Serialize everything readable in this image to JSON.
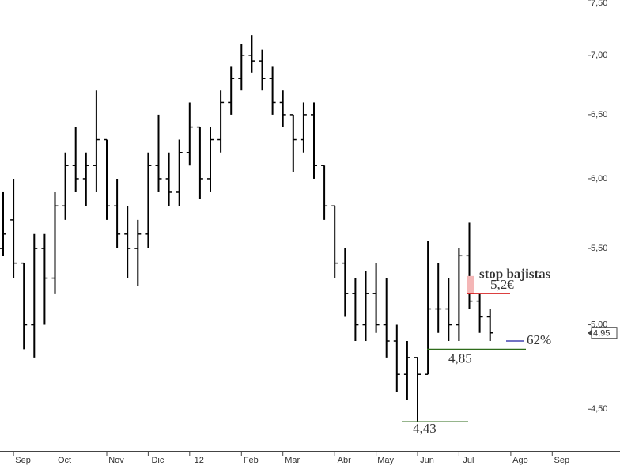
{
  "chart_data": {
    "type": "ohlc",
    "categories": [
      null,
      "Sep",
      null,
      null,
      null,
      "Oct",
      null,
      null,
      null,
      null,
      "Nov",
      null,
      null,
      null,
      "Dic",
      null,
      null,
      null,
      "12",
      null,
      null,
      null,
      null,
      "Feb",
      null,
      null,
      null,
      "Mar",
      null,
      null,
      null,
      null,
      "Abr",
      null,
      null,
      null,
      "May",
      null,
      null,
      null,
      "Jun",
      null,
      null,
      null,
      "Jul",
      null,
      null,
      null,
      null,
      "Ago",
      null,
      null,
      null,
      "Sep",
      null
    ],
    "open": [
      5.5,
      5.7,
      5.4,
      5.0,
      5.5,
      5.3,
      5.8,
      6.1,
      6.0,
      6.1,
      6.3,
      5.8,
      5.6,
      5.5,
      5.6,
      6.1,
      6.0,
      5.9,
      6.2,
      6.4,
      6.0,
      6.3,
      6.6,
      6.8,
      7.0,
      6.95,
      6.8,
      6.6,
      6.5,
      6.3,
      6.5,
      6.1,
      5.8,
      5.4,
      5.2,
      5.0,
      5.2,
      5.0,
      4.9,
      4.7,
      4.8,
      4.7,
      5.1,
      5.1,
      5.0,
      5.45,
      5.15,
      5.05,
      null,
      null,
      null,
      null,
      null,
      null,
      null
    ],
    "high": [
      5.9,
      6.0,
      5.4,
      5.6,
      5.6,
      5.9,
      6.2,
      6.4,
      6.2,
      6.7,
      6.3,
      6.0,
      5.8,
      5.7,
      6.2,
      6.5,
      6.2,
      6.3,
      6.6,
      6.4,
      6.4,
      6.7,
      6.9,
      7.1,
      7.18,
      7.05,
      6.9,
      6.7,
      6.5,
      6.6,
      6.6,
      6.1,
      5.8,
      5.5,
      5.3,
      5.35,
      5.4,
      5.3,
      5.0,
      4.9,
      4.8,
      5.55,
      5.4,
      5.3,
      5.5,
      5.68,
      5.2,
      5.1,
      null,
      null,
      null,
      null,
      null,
      null,
      null
    ],
    "low": [
      5.45,
      5.3,
      4.85,
      4.8,
      5.0,
      5.2,
      5.7,
      5.9,
      5.8,
      5.9,
      5.7,
      5.5,
      5.3,
      5.25,
      5.5,
      5.9,
      5.8,
      5.8,
      6.1,
      5.85,
      5.9,
      6.2,
      6.5,
      6.7,
      6.85,
      6.7,
      6.5,
      6.4,
      6.05,
      6.2,
      6.0,
      5.7,
      5.3,
      5.05,
      4.9,
      4.9,
      4.95,
      4.8,
      4.6,
      4.55,
      4.43,
      4.7,
      4.95,
      4.9,
      4.9,
      5.1,
      4.95,
      4.9,
      null,
      null,
      null,
      null,
      null,
      null,
      null
    ],
    "close": [
      5.6,
      5.4,
      5.0,
      5.5,
      5.3,
      5.8,
      6.1,
      6.0,
      6.1,
      6.3,
      5.8,
      5.6,
      5.5,
      5.6,
      6.1,
      6.0,
      5.9,
      6.2,
      6.4,
      6.0,
      6.3,
      6.6,
      6.8,
      7.0,
      6.95,
      6.8,
      6.6,
      6.5,
      6.3,
      6.5,
      6.1,
      5.8,
      5.4,
      5.2,
      5.0,
      5.2,
      5.0,
      4.9,
      4.7,
      4.8,
      4.7,
      5.1,
      5.1,
      5.0,
      5.45,
      5.15,
      5.05,
      4.95,
      null,
      null,
      null,
      null,
      null,
      null,
      null
    ],
    "color": "#000000",
    "log_scale": true,
    "ylim": [
      4.28,
      7.5
    ],
    "yticks": [
      {
        "value": 4.5,
        "label": "4,50"
      },
      {
        "value": 5.0,
        "label": "5,00"
      },
      {
        "value": 5.5,
        "label": "5,50"
      },
      {
        "value": 6.0,
        "label": "6,00"
      },
      {
        "value": 6.5,
        "label": "6,50"
      },
      {
        "value": 7.0,
        "label": "7,00"
      },
      {
        "value": 7.5,
        "label": "7,50"
      }
    ],
    "last": {
      "value": 4.95,
      "label": "4,95"
    },
    "levels": [
      {
        "value": 5.2,
        "label": "5,2€",
        "color": "#d00000"
      },
      {
        "value": 4.85,
        "label": "4,85",
        "color": "#2e6b1a"
      },
      {
        "value": 4.43,
        "label": "4,43",
        "color": "#2e6b1a"
      }
    ],
    "annotations": [
      {
        "text": "stop bajistas",
        "y": 5.32,
        "color": "#d00000"
      },
      {
        "text": "62%",
        "y": 4.9,
        "color": "#1f1fa0"
      }
    ]
  }
}
